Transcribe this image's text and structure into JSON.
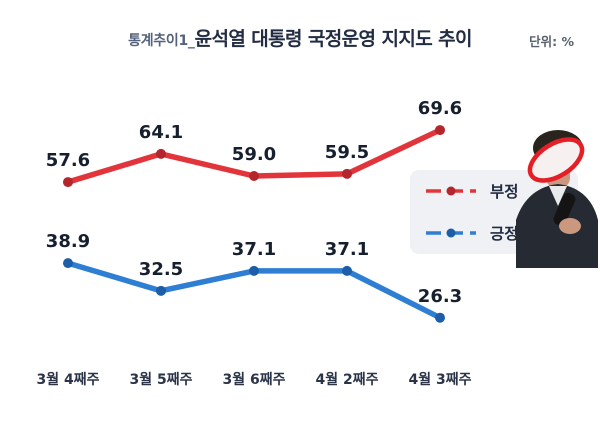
{
  "header": {
    "title_prefix": "통계추이1_",
    "title": "윤석열 대통령 국정운영 지지도 추이",
    "unit_label": "단위: %"
  },
  "legend": {
    "items": [
      {
        "label": "부정",
        "color": "#e2353b"
      },
      {
        "label": "긍정",
        "color": "#2e7ed3"
      }
    ]
  },
  "chart_data": {
    "type": "line",
    "title": "통계추이1_윤석열 대통령 국정운영 지지도 추이",
    "unit": "%",
    "categories": [
      "3월 4째주",
      "3월 5째주",
      "3월 6째주",
      "4월 2째주",
      "4월 3째주"
    ],
    "series": [
      {
        "name": "부정",
        "color": "#e2353b",
        "dot_color": "#b2262c",
        "values": [
          57.6,
          64.1,
          59.0,
          59.5,
          69.6
        ],
        "labels": [
          "57.6",
          "64.1",
          "59.0",
          "59.5",
          "69.6"
        ]
      },
      {
        "name": "긍정",
        "color": "#2e7ed3",
        "dot_color": "#1d5ea8",
        "values": [
          38.9,
          32.5,
          37.1,
          37.1,
          26.3
        ],
        "labels": [
          "38.9",
          "32.5",
          "37.1",
          "37.1",
          "26.3"
        ]
      }
    ],
    "ylim": [
      20,
      80
    ],
    "grid": false,
    "legend_position": "right"
  }
}
